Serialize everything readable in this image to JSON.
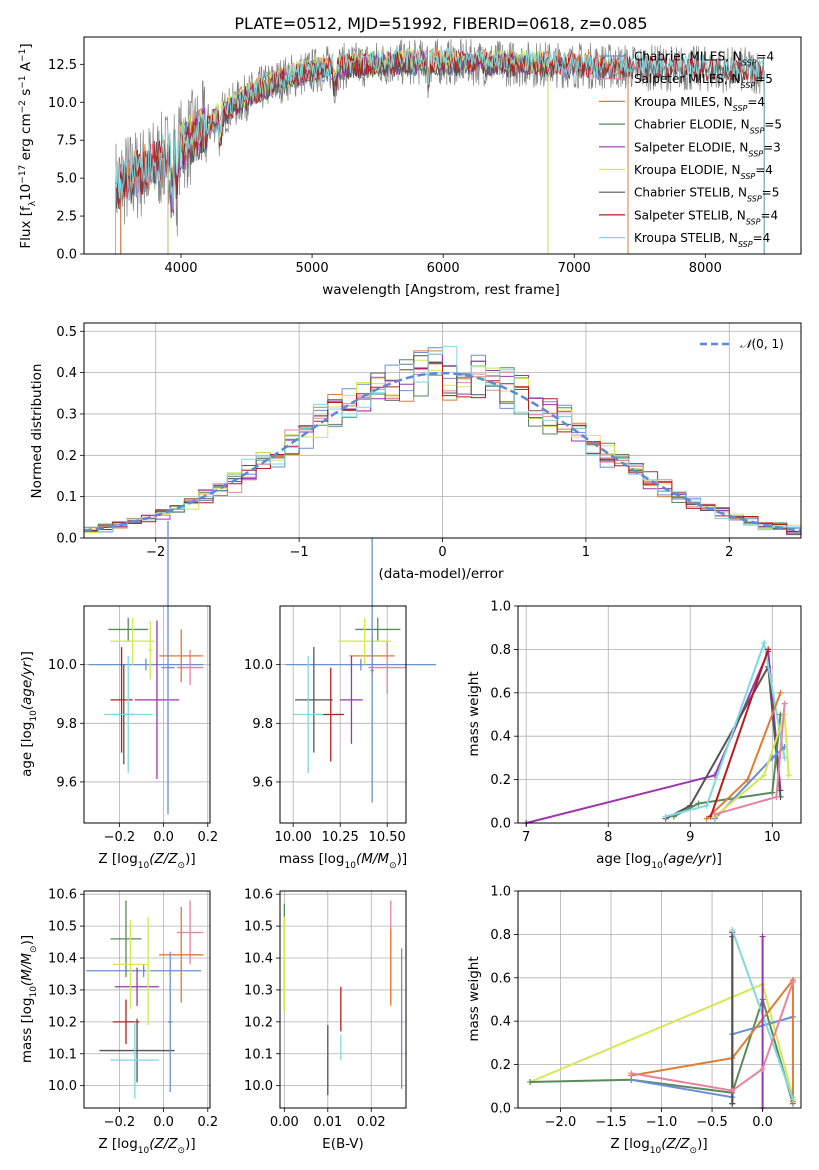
{
  "figure": {
    "title": "PLATE=0512, MJD=51992, FIBERID=0618, z=0.085"
  },
  "chart_data": [
    {
      "id": "spectrum",
      "type": "line",
      "xlabel": "wavelength [Angstrom, rest frame]",
      "ylabel": "Flux [f_λ 10^-17 erg cm^-2 s^-1 A^-1]",
      "xlim": [
        3260,
        8730
      ],
      "ylim": [
        0,
        14.3
      ],
      "xticks": [
        4000,
        5000,
        6000,
        7000,
        8000
      ],
      "yticks": [
        0.0,
        2.5,
        5.0,
        7.5,
        10.0,
        12.5
      ],
      "xtick_labels": [
        "4000",
        "5000",
        "6000",
        "7000",
        "8000"
      ],
      "ytick_labels": [
        "0.0",
        "2.5",
        "5.0",
        "7.5",
        "10.0",
        "12.5"
      ],
      "legend_position": "right",
      "data_series": {
        "name": "data",
        "color": "#808080",
        "x_start": 3500,
        "x_end": 8450
      },
      "model_series": [
        {
          "name": "Chabrier MILES, N_SSP=4",
          "color": "#6b8fd6",
          "x_start": 3540,
          "x_end": 7410
        },
        {
          "name": "Salpeter MILES, N_SSP=5",
          "color": "#e8829f",
          "x_start": 3540,
          "x_end": 7410
        },
        {
          "name": "Kroupa MILES, N_SSP=4",
          "color": "#e07b32",
          "x_start": 3540,
          "x_end": 7410
        },
        {
          "name": "Chabrier ELODIE, N_SSP=5",
          "color": "#5a8a5c",
          "x_start": 3900,
          "x_end": 6800
        },
        {
          "name": "Salpeter ELODIE, N_SSP=3",
          "color": "#9b35b0",
          "x_start": 3900,
          "x_end": 6800
        },
        {
          "name": "Kroupa ELODIE, N_SSP=4",
          "color": "#d4e857",
          "x_start": 3900,
          "x_end": 6800
        },
        {
          "name": "Chabrier STELIB, N_SSP=5",
          "color": "#555555",
          "x_start": 3500,
          "x_end": 8450
        },
        {
          "name": "Salpeter STELIB, N_SSP=4",
          "color": "#b51d1d",
          "x_start": 3500,
          "x_end": 8450
        },
        {
          "name": "Kroupa STELIB, N_SSP=4",
          "color": "#7fd9e0",
          "x_start": 3500,
          "x_end": 8450
        }
      ],
      "legend_labels": [
        {
          "a": "Chabrier MILES, N",
          "b": "SSP",
          "c": "=4"
        },
        {
          "a": "Salpeter MILES, N",
          "b": "SSP",
          "c": "=5"
        },
        {
          "a": "Kroupa MILES, N",
          "b": "SSP",
          "c": "=4"
        },
        {
          "a": "Chabrier ELODIE, N",
          "b": "SSP",
          "c": "=5"
        },
        {
          "a": "Salpeter ELODIE, N",
          "b": "SSP",
          "c": "=3"
        },
        {
          "a": "Kroupa ELODIE, N",
          "b": "SSP",
          "c": "=4"
        },
        {
          "a": "Chabrier STELIB, N",
          "b": "SSP",
          "c": "=5"
        },
        {
          "a": "Salpeter STELIB, N",
          "b": "SSP",
          "c": "=4"
        },
        {
          "a": "Kroupa STELIB, N",
          "b": "SSP",
          "c": "=4"
        }
      ]
    },
    {
      "id": "residuals",
      "type": "histogram",
      "xlabel": "(data-model)/error",
      "ylabel": "Normed distribution",
      "xlim": [
        -2.5,
        2.5
      ],
      "ylim": [
        0,
        0.52
      ],
      "xticks": [
        -2,
        -1,
        0,
        1,
        2
      ],
      "xtick_labels": [
        "−2",
        "−1",
        "0",
        "1",
        "2"
      ],
      "yticks": [
        0.0,
        0.1,
        0.2,
        0.3,
        0.4,
        0.5
      ],
      "ytick_labels": [
        "0.0",
        "0.1",
        "0.2",
        "0.3",
        "0.4",
        "0.5"
      ],
      "bin_width": 0.1,
      "bins_from": -2.5,
      "reference_curve": {
        "name": "N(0,1)",
        "mean": 0,
        "sigma": 1,
        "color": "#5b8bd8"
      },
      "legend": {
        "a": "𝒩",
        "b": "(0, 1)"
      },
      "legend_position": "top-right"
    },
    {
      "id": "age-vs-Z",
      "type": "errorbar",
      "xlabel_main": "Z [log",
      "xlabel_sub": "10",
      "xlabel_rest": "(Z/Z",
      "xlabel_end": ")]",
      "ylabel": "age [log10(age/yr)]",
      "xlim": [
        -0.36,
        0.21
      ],
      "ylim": [
        9.46,
        10.2
      ],
      "xticks": [
        -0.2,
        0.0,
        0.2
      ],
      "xtick_labels": [
        "−0.2",
        "0.0",
        "0.2"
      ],
      "yticks": [
        9.6,
        9.8,
        10.0
      ],
      "ytick_labels": [
        "9.6",
        "9.8",
        "10.0"
      ],
      "points": [
        {
          "x": -0.08,
          "xerr": 0.26,
          "y": 10.0,
          "yerr": 0.02,
          "color": "#6b8fd6"
        },
        {
          "x": 0.12,
          "xerr": 0.06,
          "y": 9.99,
          "yerr": 0.06,
          "color": "#e8829f"
        },
        {
          "x": 0.08,
          "xerr": 0.1,
          "y": 10.03,
          "yerr": 0.09,
          "color": "#e07b32"
        },
        {
          "x": -0.16,
          "xerr": 0.09,
          "y": 10.12,
          "yerr": 0.04,
          "color": "#5a8a5c"
        },
        {
          "x": -0.03,
          "xerr": 0.1,
          "y": 9.88,
          "yerr": 0.27,
          "color": "#9b35b0"
        },
        {
          "x": -0.14,
          "xerr": 0.1,
          "y": 10.08,
          "yerr": 0.08,
          "color": "#d4e857"
        },
        {
          "x": -0.18,
          "xerr": 0.05,
          "y": 9.83,
          "yerr": 0.17,
          "color": "#555555"
        },
        {
          "x": -0.19,
          "xerr": 0.05,
          "y": 9.88,
          "yerr": 0.18,
          "color": "#b51d1d"
        },
        {
          "x": -0.16,
          "xerr": 0.11,
          "y": 9.83,
          "yerr": 0.2,
          "color": "#7fd9e0"
        },
        {
          "x": 0.02,
          "xerr": 0.03,
          "y": 9.99,
          "yerr": 0.5,
          "color": "#6b8fd6"
        },
        {
          "x": -0.06,
          "xerr": 0.01,
          "y": 10.05,
          "yerr": 0.1,
          "color": "#d4e857"
        }
      ]
    },
    {
      "id": "age-vs-mass",
      "type": "errorbar",
      "xlabel_main": "mass [log",
      "xlabel_sub": "10",
      "xlabel_rest": "(M/M",
      "xlabel_end": ")]",
      "xlim": [
        9.93,
        10.6
      ],
      "ylim": [
        9.46,
        10.2
      ],
      "xticks": [
        10.0,
        10.25,
        10.5
      ],
      "xtick_labels": [
        "10.00",
        "10.25",
        "10.50"
      ],
      "yticks": [
        9.6,
        9.8,
        10.0
      ],
      "ytick_labels": [
        "9.6",
        "9.8",
        "10.0"
      ],
      "points": [
        {
          "x": 10.36,
          "xerr": 0.4,
          "y": 10.0,
          "yerr": 0.02,
          "color": "#6b8fd6"
        },
        {
          "x": 10.5,
          "xerr": 0.1,
          "y": 9.99,
          "yerr": 0.09,
          "color": "#e8829f"
        },
        {
          "x": 10.42,
          "xerr": 0.12,
          "y": 10.03,
          "yerr": 0.07,
          "color": "#e07b32"
        },
        {
          "x": 10.45,
          "xerr": 0.12,
          "y": 10.12,
          "yerr": 0.04,
          "color": "#5a8a5c"
        },
        {
          "x": 10.31,
          "xerr": 0.06,
          "y": 9.88,
          "yerr": 0.15,
          "color": "#9b35b0"
        },
        {
          "x": 10.38,
          "xerr": 0.14,
          "y": 10.08,
          "yerr": 0.08,
          "color": "#d4e857"
        },
        {
          "x": 10.11,
          "xerr": 0.1,
          "y": 9.88,
          "yerr": 0.18,
          "color": "#555555"
        },
        {
          "x": 10.2,
          "xerr": 0.07,
          "y": 9.83,
          "yerr": 0.16,
          "color": "#b51d1d"
        },
        {
          "x": 10.08,
          "xerr": 0.08,
          "y": 9.83,
          "yerr": 0.2,
          "color": "#7fd9e0"
        },
        {
          "x": 10.42,
          "xerr": 0.01,
          "y": 9.98,
          "yerr": 0.45,
          "color": "#6b8fd6"
        }
      ]
    },
    {
      "id": "mass-weight-vs-age",
      "type": "line",
      "xlabel": "age [log10(age/yr)]",
      "ylabel": "mass weight",
      "xlim": [
        6.9,
        10.35
      ],
      "ylim": [
        0,
        1
      ],
      "xticks": [
        7,
        8,
        9,
        10
      ],
      "xtick_labels": [
        "7",
        "8",
        "9",
        "10"
      ],
      "yticks": [
        0.0,
        0.2,
        0.4,
        0.6,
        0.8,
        1.0
      ],
      "ytick_labels": [
        "0.0",
        "0.2",
        "0.4",
        "0.6",
        "0.8",
        "1.0"
      ],
      "series": [
        {
          "color": "#9b35b0",
          "points": [
            [
              7.0,
              0.0
            ],
            [
              9.3,
              0.22
            ],
            [
              9.95,
              0.79
            ],
            [
              10.1,
              0.15
            ]
          ]
        },
        {
          "color": "#555555",
          "points": [
            [
              8.7,
              0.02
            ],
            [
              9.0,
              0.08
            ],
            [
              9.95,
              0.72
            ],
            [
              10.1,
              0.12
            ]
          ]
        },
        {
          "color": "#5a8a5c",
          "points": [
            [
              8.8,
              0.03
            ],
            [
              9.1,
              0.09
            ],
            [
              10.0,
              0.14
            ],
            [
              10.1,
              0.5
            ]
          ]
        },
        {
          "color": "#7fd9e0",
          "points": [
            [
              8.7,
              0.03
            ],
            [
              9.2,
              0.08
            ],
            [
              9.9,
              0.83
            ],
            [
              10.15,
              0.3
            ]
          ]
        },
        {
          "color": "#e07b32",
          "points": [
            [
              9.2,
              0.02
            ],
            [
              9.7,
              0.2
            ],
            [
              10.1,
              0.6
            ]
          ]
        },
        {
          "color": "#b51d1d",
          "points": [
            [
              9.25,
              0.03
            ],
            [
              9.95,
              0.8
            ]
          ]
        },
        {
          "color": "#6b8fd6",
          "points": [
            [
              9.3,
              0.02
            ],
            [
              10.0,
              0.3
            ],
            [
              10.15,
              0.35
            ]
          ]
        },
        {
          "color": "#d4e857",
          "points": [
            [
              9.3,
              0.03
            ],
            [
              9.9,
              0.22
            ],
            [
              10.15,
              0.5
            ],
            [
              10.2,
              0.22
            ]
          ]
        },
        {
          "color": "#e8829f",
          "points": [
            [
              9.3,
              0.04
            ],
            [
              10.05,
              0.12
            ],
            [
              10.15,
              0.55
            ]
          ]
        }
      ]
    },
    {
      "id": "mass-vs-Z",
      "type": "errorbar",
      "xlabel_main": "Z [log",
      "xlabel_sub": "10",
      "xlabel_rest": "(Z/Z",
      "xlabel_end": ")]",
      "xlim": [
        -0.36,
        0.21
      ],
      "ylim": [
        9.93,
        10.61
      ],
      "xticks": [
        -0.2,
        0.0,
        0.2
      ],
      "xtick_labels": [
        "−0.2",
        "0.0",
        "0.2"
      ],
      "yticks": [
        10.0,
        10.1,
        10.2,
        10.3,
        10.4,
        10.5,
        10.6
      ],
      "ytick_labels": [
        "10.0",
        "10.1",
        "10.2",
        "10.3",
        "10.4",
        "10.5",
        "10.6"
      ],
      "points": [
        {
          "x": -0.09,
          "xerr": 0.26,
          "y": 10.36,
          "yerr": 0.02,
          "color": "#6b8fd6"
        },
        {
          "x": 0.12,
          "xerr": 0.06,
          "y": 10.48,
          "yerr": 0.1,
          "color": "#e8829f"
        },
        {
          "x": 0.08,
          "xerr": 0.1,
          "y": 10.41,
          "yerr": 0.15,
          "color": "#e07b32"
        },
        {
          "x": -0.17,
          "xerr": 0.07,
          "y": 10.46,
          "yerr": 0.12,
          "color": "#5a8a5c"
        },
        {
          "x": -0.12,
          "xerr": 0.1,
          "y": 10.31,
          "yerr": 0.06,
          "color": "#9b35b0"
        },
        {
          "x": -0.15,
          "xerr": 0.08,
          "y": 10.38,
          "yerr": 0.14,
          "color": "#d4e857"
        },
        {
          "x": -0.12,
          "xerr": 0.17,
          "y": 10.11,
          "yerr": 0.1,
          "color": "#555555"
        },
        {
          "x": -0.17,
          "xerr": 0.06,
          "y": 10.2,
          "yerr": 0.07,
          "color": "#b51d1d"
        },
        {
          "x": -0.13,
          "xerr": 0.11,
          "y": 10.08,
          "yerr": 0.12,
          "color": "#7fd9e0"
        },
        {
          "x": 0.03,
          "xerr": 0.01,
          "y": 10.2,
          "yerr": 0.22,
          "color": "#6b8fd6"
        },
        {
          "x": -0.07,
          "xerr": 0.01,
          "y": 10.36,
          "yerr": 0.17,
          "color": "#d4e857"
        }
      ]
    },
    {
      "id": "mass-vs-ebv",
      "type": "errorbar",
      "xlabel": "E(B-V)",
      "xlim": [
        -0.001,
        0.028
      ],
      "ylim": [
        9.93,
        10.61
      ],
      "xticks": [
        0.0,
        0.01,
        0.02
      ],
      "xtick_labels": [
        "0.00",
        "0.01",
        "0.02"
      ],
      "yticks": [
        10.0,
        10.1,
        10.2,
        10.3,
        10.4,
        10.5,
        10.6
      ],
      "ytick_labels": [
        "10.0",
        "10.1",
        "10.2",
        "10.3",
        "10.4",
        "10.5",
        "10.6"
      ],
      "points": [
        {
          "x": 0.0,
          "xerr": 0.0,
          "y": 10.4,
          "yerr": 0.17,
          "color": "#5a8a5c"
        },
        {
          "x": 0.0,
          "xerr": 0.0,
          "y": 10.38,
          "yerr": 0.15,
          "color": "#d4e857"
        },
        {
          "x": 0.01,
          "xerr": 0.0,
          "y": 10.08,
          "yerr": 0.11,
          "color": "#555555"
        },
        {
          "x": 0.013,
          "xerr": 0.0,
          "y": 10.24,
          "yerr": 0.07,
          "color": "#b51d1d"
        },
        {
          "x": 0.013,
          "xerr": 0.0,
          "y": 10.12,
          "yerr": 0.04,
          "color": "#7fd9e0"
        },
        {
          "x": 0.0245,
          "xerr": 0.0,
          "y": 10.42,
          "yerr": 0.16,
          "color": "#e8829f"
        },
        {
          "x": 0.0245,
          "xerr": 0.0,
          "y": 10.37,
          "yerr": 0.12,
          "color": "#e07b32"
        },
        {
          "x": 0.027,
          "xerr": 0.0,
          "y": 10.21,
          "yerr": 0.22,
          "color": "#6b8fd6"
        }
      ]
    },
    {
      "id": "mass-weight-vs-Z",
      "type": "line",
      "xlabel_main": "Z [log",
      "xlabel_sub": "10",
      "xlabel_rest": "(Z/Z",
      "xlabel_end": ")]",
      "ylabel": "mass weight",
      "xlim": [
        -2.42,
        0.38
      ],
      "ylim": [
        0,
        1
      ],
      "xticks": [
        -2.0,
        -1.5,
        -1.0,
        -0.5,
        0.0
      ],
      "xtick_labels": [
        "−2.0",
        "−1.5",
        "−1.0",
        "−0.5",
        "0.0"
      ],
      "yticks": [
        0.0,
        0.2,
        0.4,
        0.6,
        0.8,
        1.0
      ],
      "ytick_labels": [
        "0.0",
        "0.2",
        "0.4",
        "0.6",
        "0.8",
        "1.0"
      ],
      "series": [
        {
          "color": "#d4e857",
          "points": [
            [
              -2.3,
              0.12
            ],
            [
              0.0,
              0.57
            ],
            [
              0.3,
              0.05
            ]
          ]
        },
        {
          "color": "#5a8a5c",
          "points": [
            [
              -2.3,
              0.12
            ],
            [
              -1.3,
              0.13
            ],
            [
              -0.3,
              0.07
            ],
            [
              0.0,
              0.5
            ],
            [
              0.3,
              0.02
            ]
          ]
        },
        {
          "color": "#6b8fd6",
          "points": [
            [
              -1.3,
              0.13
            ],
            [
              -0.3,
              0.05
            ],
            [
              -0.3,
              0.34
            ],
            [
              0.3,
              0.42
            ]
          ]
        },
        {
          "color": "#e07b32",
          "points": [
            [
              -1.3,
              0.15
            ],
            [
              -0.3,
              0.23
            ],
            [
              0.3,
              0.59
            ],
            [
              0.3,
              0.03
            ]
          ]
        },
        {
          "color": "#b51d1d",
          "points": [
            [
              -0.3,
              0.02
            ],
            [
              -0.3,
              0.81
            ]
          ]
        },
        {
          "color": "#555555",
          "points": [
            [
              -0.3,
              0.02
            ],
            [
              -0.3,
              0.79
            ]
          ]
        },
        {
          "color": "#7fd9e0",
          "points": [
            [
              -0.3,
              0.82
            ],
            [
              0.3,
              0.04
            ]
          ]
        },
        {
          "color": "#9b35b0",
          "points": [
            [
              0.0,
              0.79
            ],
            [
              0.0,
              0.0
            ]
          ]
        },
        {
          "color": "#e8829f",
          "points": [
            [
              -1.3,
              0.16
            ],
            [
              -0.3,
              0.08
            ],
            [
              0.0,
              0.18
            ],
            [
              0.3,
              0.58
            ]
          ]
        }
      ]
    }
  ]
}
